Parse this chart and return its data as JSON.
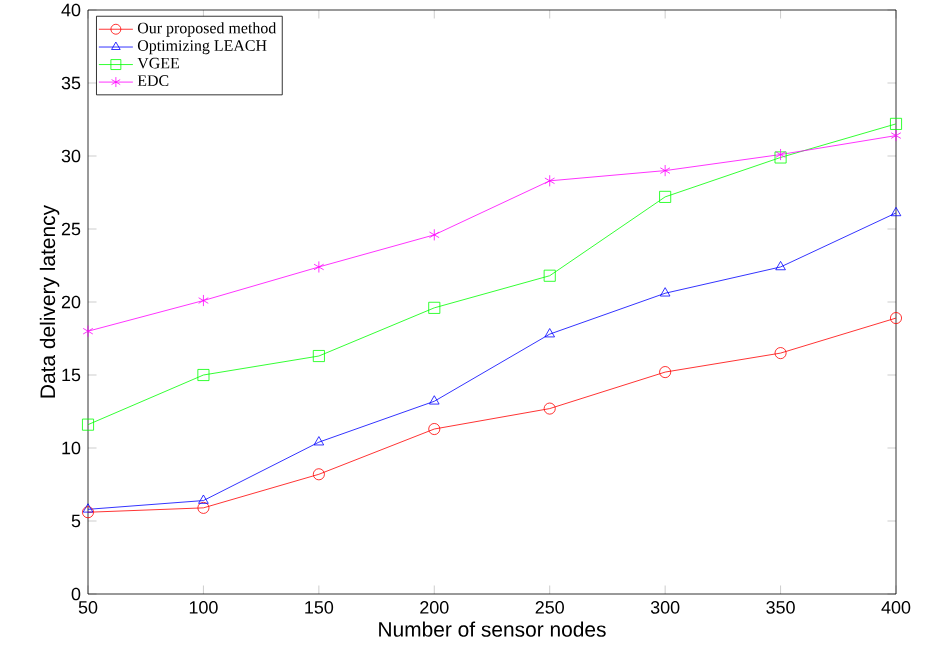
{
  "chart_data": {
    "type": "line",
    "xlabel": "Number of sensor nodes",
    "ylabel": "Data delivery latency",
    "x": [
      50,
      100,
      150,
      200,
      250,
      300,
      350,
      400
    ],
    "xlim": [
      50,
      400
    ],
    "xticks": [
      50,
      100,
      150,
      200,
      250,
      300,
      350,
      400
    ],
    "ylim": [
      0,
      40
    ],
    "yticks": [
      0,
      5,
      10,
      15,
      20,
      25,
      30,
      35,
      40
    ],
    "legend": "top left",
    "series": [
      {
        "name": "Our proposed method",
        "color": "#ff0000",
        "marker": "circle",
        "values": [
          5.6,
          5.9,
          8.2,
          11.3,
          12.7,
          15.2,
          16.5,
          18.9
        ]
      },
      {
        "name": "Optimizing LEACH",
        "color": "#0000ff",
        "marker": "triangle",
        "values": [
          5.8,
          6.4,
          10.4,
          13.2,
          17.8,
          20.6,
          22.4,
          26.1
        ]
      },
      {
        "name": "VGEE",
        "color": "#00ff00",
        "marker": "square",
        "values": [
          11.6,
          15.0,
          16.3,
          19.6,
          21.8,
          27.2,
          29.9,
          32.2
        ]
      },
      {
        "name": "EDC",
        "color": "#ff00ff",
        "marker": "cross",
        "values": [
          18.0,
          20.1,
          22.4,
          24.6,
          28.3,
          29.0,
          30.1,
          31.4
        ]
      }
    ]
  }
}
